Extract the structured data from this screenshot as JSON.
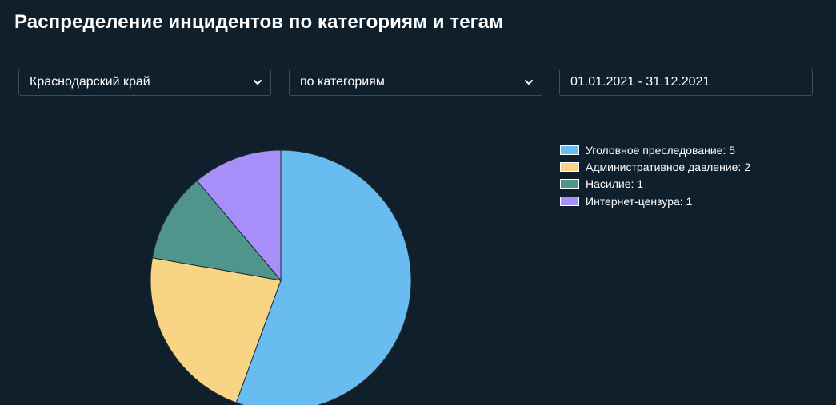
{
  "page": {
    "title": "Распределение инцидентов по категориям и тегам"
  },
  "filters": {
    "region": {
      "selected": "Краснодарский край"
    },
    "grouping": {
      "selected": "по категориям"
    },
    "date_range": {
      "value": "01.01.2021 - 31.12.2021"
    }
  },
  "colors": {
    "background": "#0f1f2b",
    "slice_border": "#1f2a33"
  },
  "chart_data": {
    "type": "pie",
    "title": "",
    "slices": [
      {
        "label": "Уголовное преследование",
        "value": 5,
        "color": "#69bcef",
        "legend_text": "Уголовное преследование: 5"
      },
      {
        "label": "Административное давление",
        "value": 2,
        "color": "#f7d585",
        "legend_text": "Административное давление: 2"
      },
      {
        "label": "Насилие",
        "value": 1,
        "color": "#4f958b",
        "legend_text": "Насилие: 1"
      },
      {
        "label": "Интернет-цензура",
        "value": 1,
        "color": "#a78ffa",
        "legend_text": "Интернет-цензура: 1"
      }
    ],
    "legend_placement": "right"
  }
}
